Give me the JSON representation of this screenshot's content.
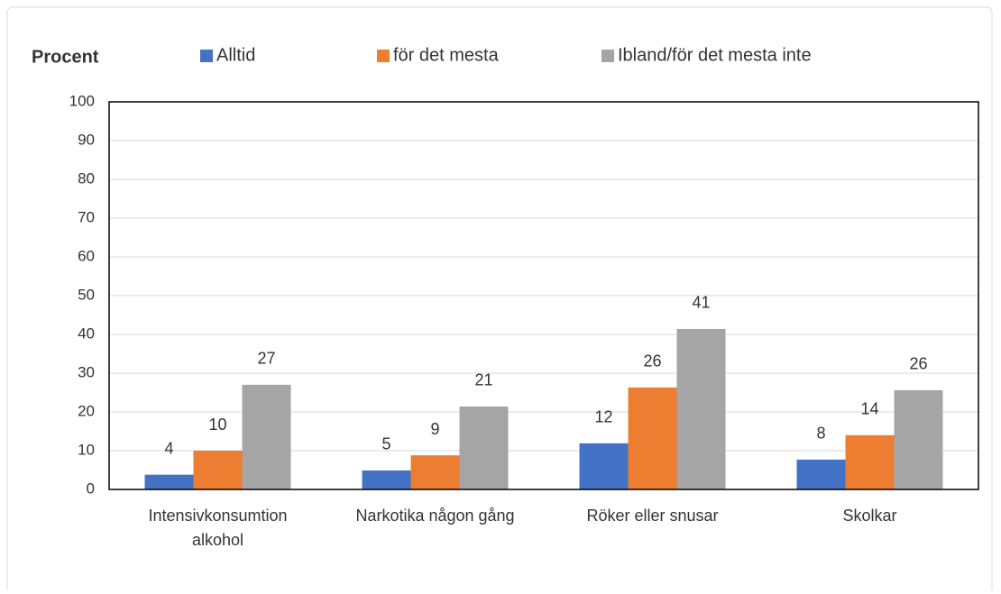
{
  "chart_data": {
    "type": "bar",
    "y_label": "Procent",
    "categories": [
      "Intensivkonsumtion alkohol",
      "Narkotika någon gång",
      "Röker eller snusar",
      "Skolkar"
    ],
    "series": [
      {
        "name": "Alltid",
        "color": "#4472c4",
        "values": [
          3.8,
          4.9,
          11.9,
          7.7
        ],
        "value_labels": [
          "4",
          "5",
          "12",
          "8"
        ]
      },
      {
        "name": "för det mesta",
        "color": "#ed7d31",
        "values": [
          10,
          8.8,
          26.3,
          14
        ],
        "value_labels": [
          "10",
          "9",
          "26",
          "14"
        ]
      },
      {
        "name": "Ibland/för det mesta inte",
        "color": "#a5a5a5",
        "values": [
          27,
          21.4,
          41.4,
          25.6
        ],
        "value_labels": [
          "27",
          "21",
          "41",
          "26"
        ]
      }
    ],
    "ylim": [
      0,
      100
    ],
    "yticks": [
      0,
      10,
      20,
      30,
      40,
      50,
      60,
      70,
      80,
      90,
      100
    ],
    "grid": true
  }
}
